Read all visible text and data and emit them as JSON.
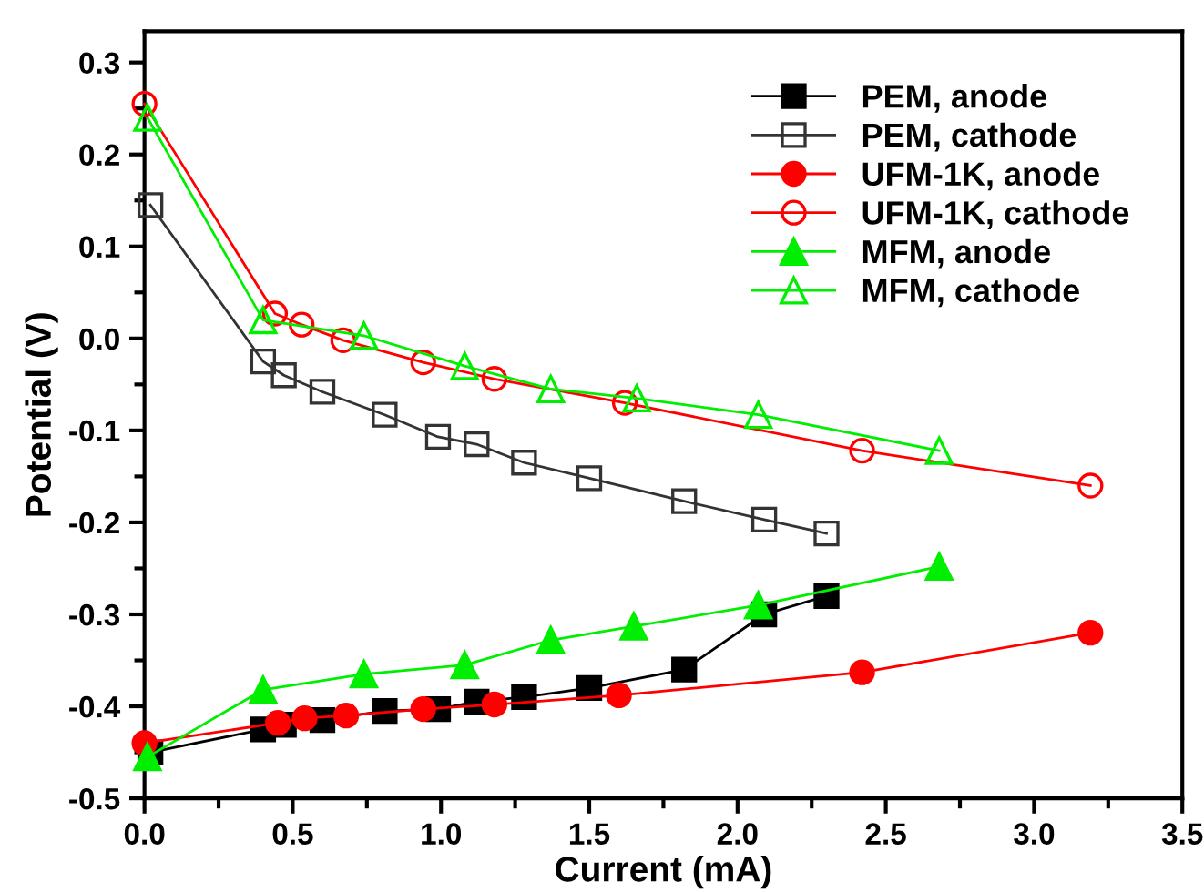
{
  "chart_data": {
    "type": "line",
    "xlabel": "Current (mA)",
    "ylabel": "Potential (V)",
    "xlim": [
      0,
      3.5
    ],
    "ylim": [
      -0.5,
      0.334
    ],
    "xticks": [
      {
        "value": 0,
        "label": "0.0"
      },
      0.5,
      {
        "value": 1,
        "label": "1.0"
      },
      1.5,
      {
        "value": 2,
        "label": "2.0"
      },
      2.5,
      {
        "value": 3,
        "label": "3.0"
      },
      3.5
    ],
    "yticks": [
      -0.5,
      -0.4,
      -0.3,
      -0.2,
      -0.1,
      {
        "value": 0,
        "label": "0.0"
      },
      0.1,
      0.2,
      0.3
    ],
    "grid": false,
    "legend": "top right",
    "line_style": "solid",
    "series": [
      {
        "name": "PEM, anode",
        "color": "#000000",
        "marker": "square",
        "x": [
          0.02,
          0.4,
          0.47,
          0.6,
          0.81,
          0.99,
          1.12,
          1.28,
          1.5,
          1.82,
          2.09,
          2.3
        ],
        "values": [
          -0.45,
          -0.425,
          -0.42,
          -0.415,
          -0.405,
          -0.403,
          -0.395,
          -0.39,
          -0.38,
          -0.36,
          -0.3,
          -0.28
        ]
      },
      {
        "name": "PEM, cathode",
        "color": "#333333",
        "marker": "square",
        "x": [
          0.02,
          0.4,
          0.47,
          0.6,
          0.81,
          0.99,
          1.12,
          1.28,
          1.5,
          1.82,
          2.09,
          2.3
        ],
        "values": [
          0.145,
          -0.025,
          -0.04,
          -0.058,
          -0.083,
          -0.107,
          -0.115,
          -0.135,
          -0.152,
          -0.177,
          -0.197,
          -0.212
        ]
      },
      {
        "name": "UFM-1K, anode",
        "color": "#ff0000",
        "marker": "circle",
        "x": [
          0.0,
          0.45,
          0.54,
          0.68,
          0.94,
          1.18,
          1.6,
          2.42,
          3.19
        ],
        "values": [
          -0.44,
          -0.418,
          -0.413,
          -0.41,
          -0.403,
          -0.398,
          -0.388,
          -0.363,
          -0.32
        ]
      },
      {
        "name": "UFM-1K, cathode",
        "color": "#ff0000",
        "marker": "circle",
        "x": [
          0.0,
          0.44,
          0.53,
          0.67,
          0.94,
          1.18,
          1.62,
          2.42,
          3.19
        ],
        "values": [
          0.255,
          0.027,
          0.015,
          -0.002,
          -0.026,
          -0.044,
          -0.07,
          -0.122,
          -0.16
        ]
      },
      {
        "name": "MFM, anode",
        "color": "#00ee00",
        "marker": "triangle",
        "x": [
          0.01,
          0.4,
          0.74,
          1.08,
          1.37,
          1.65,
          2.07,
          2.68
        ],
        "values": [
          -0.455,
          -0.382,
          -0.365,
          -0.355,
          -0.328,
          -0.313,
          -0.29,
          -0.248
        ]
      },
      {
        "name": "MFM, cathode",
        "color": "#00ee00",
        "marker": "triangle",
        "x": [
          0.01,
          0.4,
          0.74,
          1.08,
          1.37,
          1.66,
          2.07,
          2.68
        ],
        "values": [
          0.24,
          0.02,
          0.003,
          -0.03,
          -0.055,
          -0.065,
          -0.083,
          -0.122
        ]
      }
    ]
  }
}
